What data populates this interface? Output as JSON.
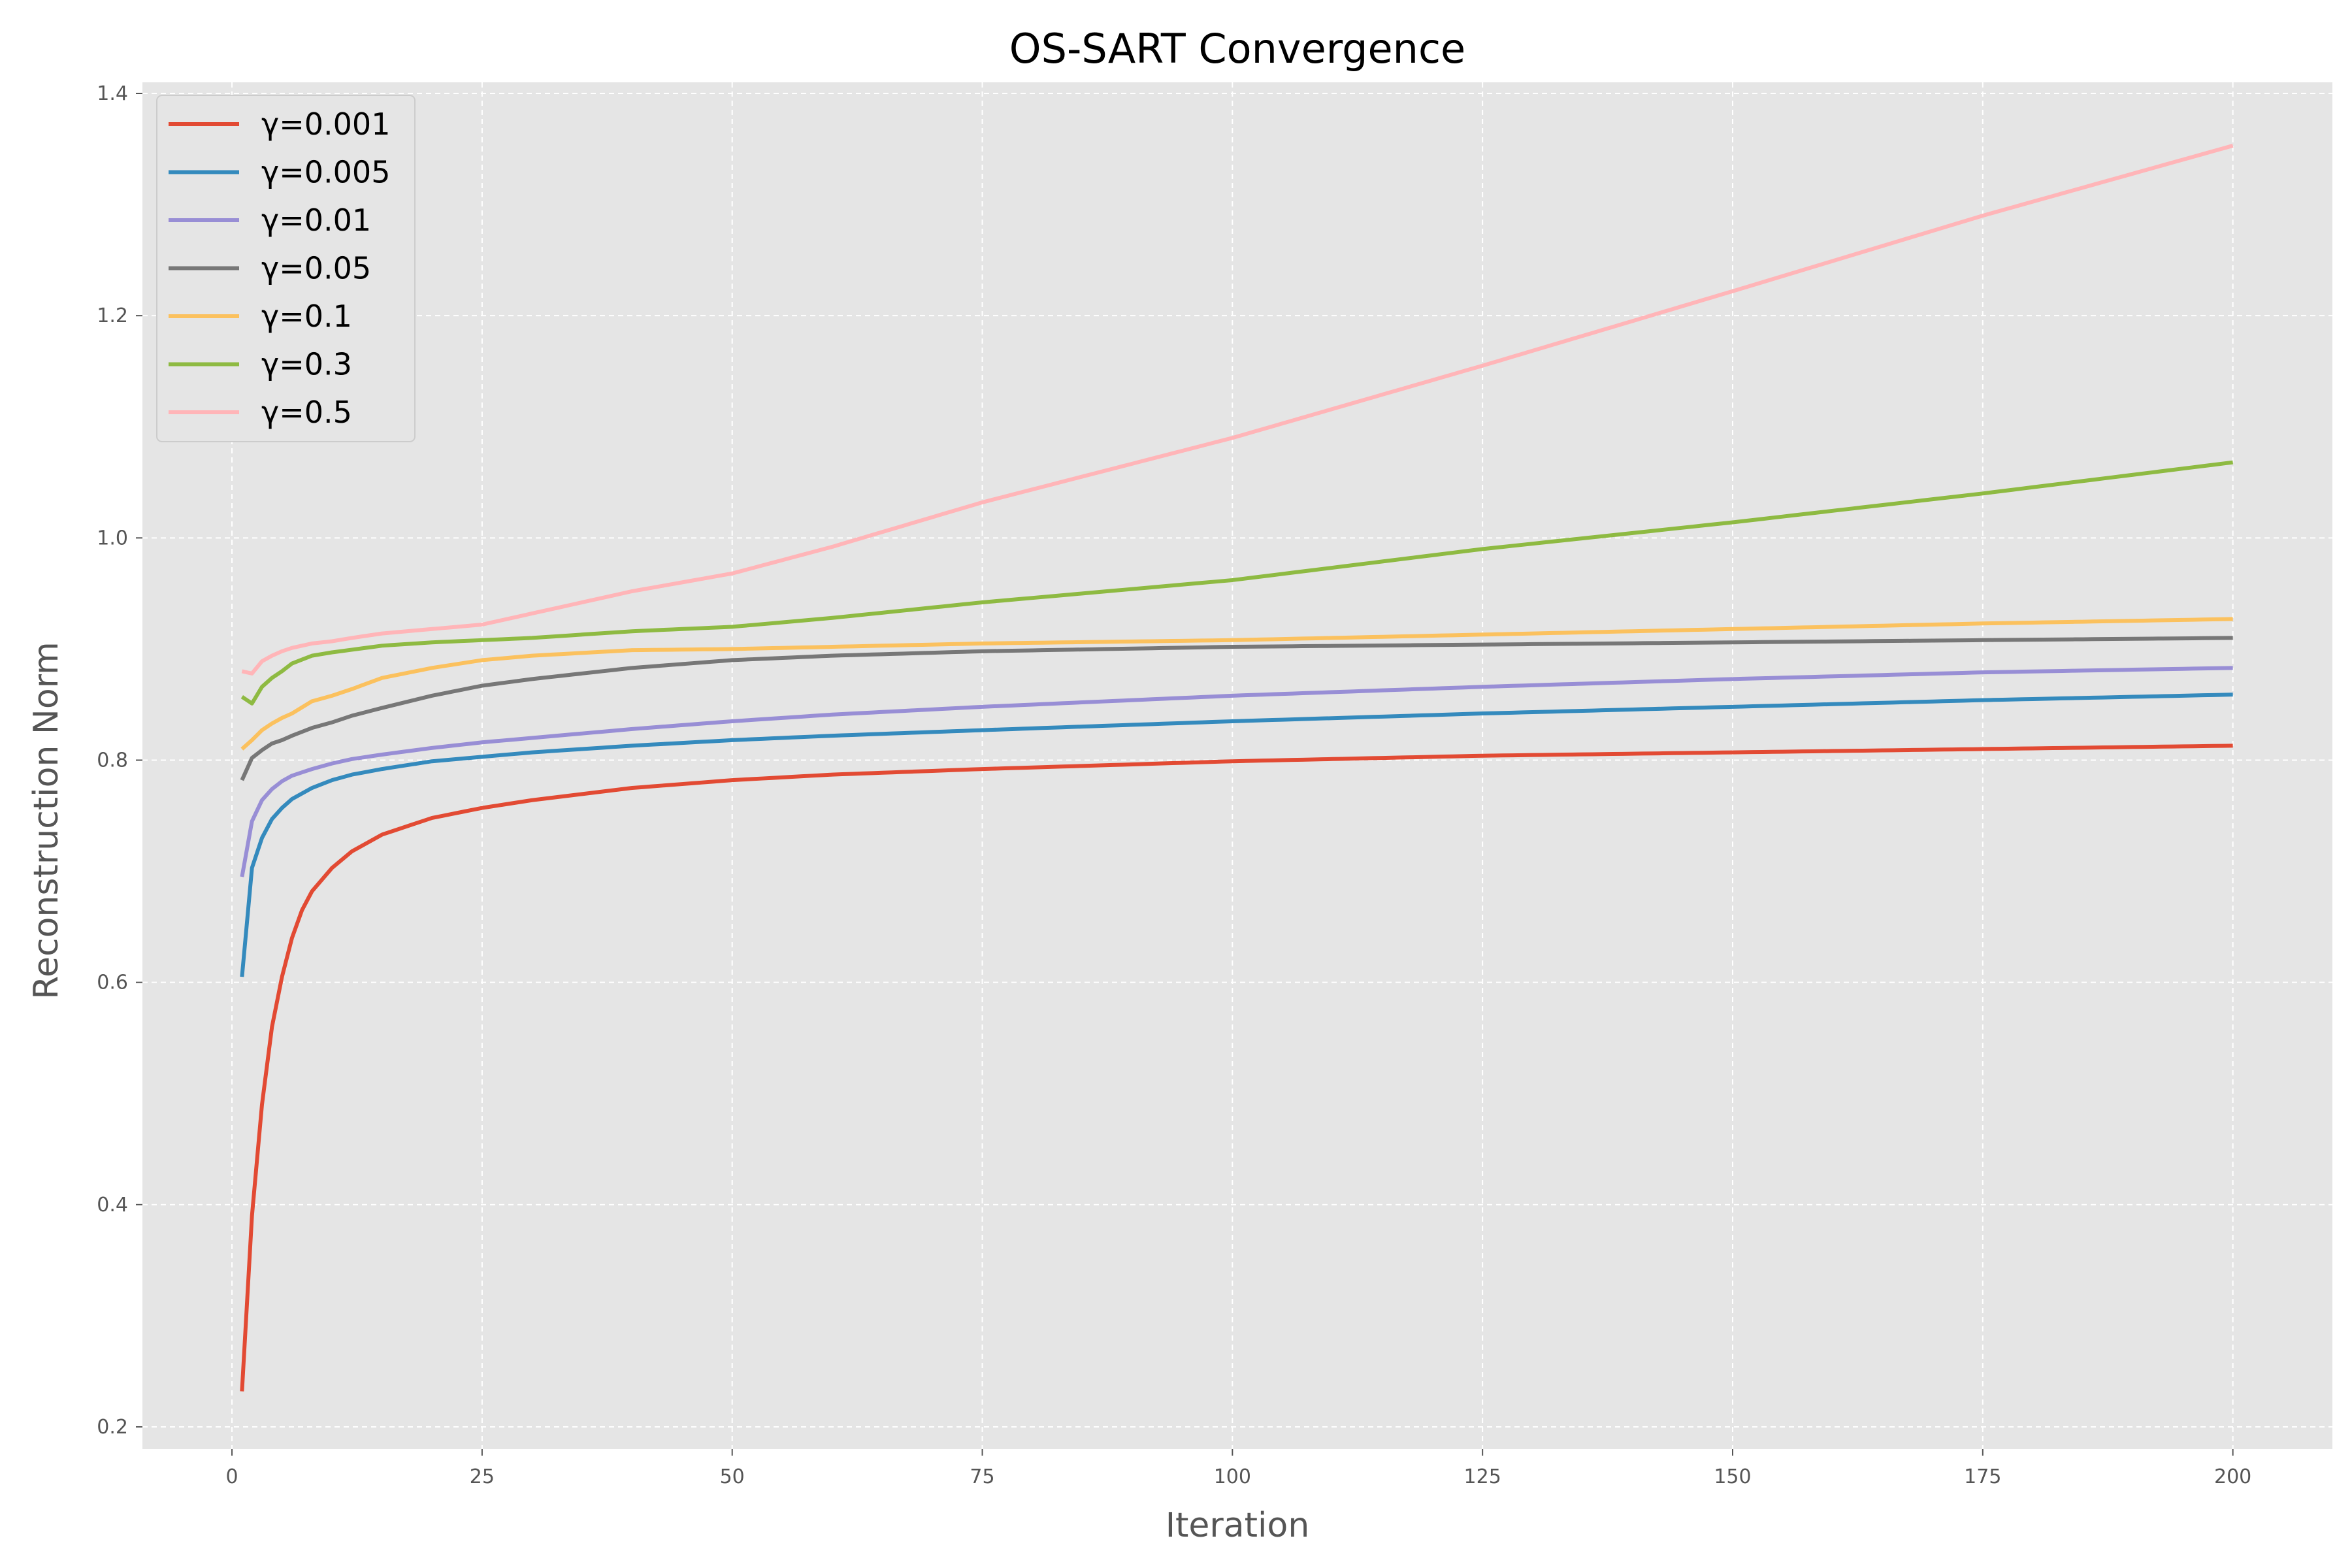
{
  "chart_data": {
    "type": "line",
    "title": "OS-SART Convergence",
    "xlabel": "Iteration",
    "ylabel": "Reconstruction Norm",
    "xlim": [
      -8.95,
      209.95
    ],
    "ylim": [
      0.18,
      1.41
    ],
    "xticks": [
      "0",
      "25",
      "50",
      "75",
      "100",
      "125",
      "150",
      "175",
      "200"
    ],
    "yticks": [
      "0.2",
      "0.4",
      "0.6",
      "0.8",
      "1.0",
      "1.2",
      "1.4"
    ],
    "grid": true,
    "legend_position": "upper-left",
    "background": "#E5E5E5",
    "x_range": [
      1,
      200
    ],
    "series": [
      {
        "name": "γ=0.001",
        "color": "#E24A33",
        "x": [
          1,
          2,
          3,
          4,
          5,
          6,
          7,
          8,
          10,
          12,
          15,
          20,
          25,
          30,
          40,
          50,
          60,
          75,
          100,
          125,
          150,
          175,
          200
        ],
        "y": [
          0.232,
          0.39,
          0.49,
          0.56,
          0.605,
          0.64,
          0.665,
          0.682,
          0.703,
          0.718,
          0.733,
          0.748,
          0.757,
          0.764,
          0.775,
          0.782,
          0.787,
          0.792,
          0.799,
          0.804,
          0.807,
          0.81,
          0.813
        ]
      },
      {
        "name": "γ=0.005",
        "color": "#348ABD",
        "x": [
          1,
          2,
          3,
          4,
          5,
          6,
          8,
          10,
          12,
          15,
          20,
          25,
          30,
          40,
          50,
          60,
          75,
          100,
          125,
          150,
          175,
          200
        ],
        "y": [
          0.605,
          0.703,
          0.73,
          0.747,
          0.757,
          0.765,
          0.775,
          0.782,
          0.787,
          0.792,
          0.799,
          0.803,
          0.807,
          0.813,
          0.818,
          0.822,
          0.827,
          0.835,
          0.842,
          0.848,
          0.854,
          0.859
        ]
      },
      {
        "name": "γ=0.01",
        "color": "#988ED5",
        "x": [
          1,
          2,
          3,
          4,
          5,
          6,
          8,
          10,
          12,
          15,
          20,
          25,
          30,
          40,
          50,
          60,
          75,
          100,
          125,
          150,
          175,
          200
        ],
        "y": [
          0.695,
          0.745,
          0.764,
          0.774,
          0.781,
          0.786,
          0.792,
          0.797,
          0.801,
          0.805,
          0.811,
          0.816,
          0.82,
          0.828,
          0.835,
          0.841,
          0.848,
          0.858,
          0.866,
          0.873,
          0.879,
          0.883
        ]
      },
      {
        "name": "γ=0.05",
        "color": "#777777",
        "x": [
          1,
          2,
          3,
          4,
          5,
          6,
          8,
          10,
          12,
          15,
          20,
          25,
          30,
          40,
          50,
          60,
          75,
          100,
          125,
          150,
          175,
          200
        ],
        "y": [
          0.782,
          0.802,
          0.809,
          0.815,
          0.818,
          0.822,
          0.829,
          0.834,
          0.84,
          0.847,
          0.858,
          0.867,
          0.873,
          0.883,
          0.89,
          0.894,
          0.898,
          0.902,
          0.904,
          0.906,
          0.908,
          0.91
        ]
      },
      {
        "name": "γ=0.1",
        "color": "#FBC15E",
        "x": [
          1,
          2,
          3,
          4,
          5,
          6,
          8,
          10,
          12,
          15,
          20,
          25,
          30,
          40,
          50,
          60,
          75,
          100,
          125,
          150,
          175,
          200
        ],
        "y": [
          0.81,
          0.818,
          0.827,
          0.833,
          0.838,
          0.842,
          0.853,
          0.858,
          0.864,
          0.874,
          0.883,
          0.89,
          0.894,
          0.899,
          0.9,
          0.902,
          0.905,
          0.908,
          0.913,
          0.918,
          0.923,
          0.927
        ]
      },
      {
        "name": "γ=0.3",
        "color": "#8EBA42",
        "x": [
          1,
          2,
          3,
          4,
          5,
          6,
          8,
          10,
          15,
          20,
          25,
          30,
          40,
          50,
          60,
          75,
          100,
          125,
          150,
          175,
          200
        ],
        "y": [
          0.857,
          0.851,
          0.866,
          0.874,
          0.88,
          0.887,
          0.894,
          0.897,
          0.903,
          0.906,
          0.908,
          0.91,
          0.916,
          0.92,
          0.928,
          0.942,
          0.962,
          0.99,
          1.014,
          1.04,
          1.068
        ]
      },
      {
        "name": "γ=0.5",
        "color": "#FFB5B8",
        "x": [
          1,
          2,
          3,
          4,
          5,
          6,
          8,
          10,
          12,
          15,
          20,
          25,
          30,
          40,
          50,
          60,
          75,
          100,
          125,
          150,
          175,
          200
        ],
        "y": [
          0.88,
          0.878,
          0.889,
          0.894,
          0.898,
          0.901,
          0.905,
          0.907,
          0.91,
          0.914,
          0.918,
          0.922,
          0.932,
          0.952,
          0.968,
          0.992,
          1.032,
          1.09,
          1.155,
          1.222,
          1.29,
          1.353
        ]
      }
    ]
  }
}
